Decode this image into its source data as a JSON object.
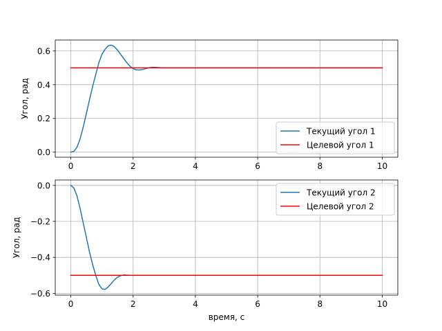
{
  "chart_data": [
    {
      "type": "line",
      "title": "",
      "xlabel": "",
      "ylabel": "Угол, рад",
      "xlim": [
        -0.5,
        10.5
      ],
      "ylim": [
        -0.03,
        0.665
      ],
      "xticks": [
        0,
        2,
        4,
        6,
        8,
        10
      ],
      "xtick_labels": [
        "0",
        "2",
        "4",
        "6",
        "8",
        "10"
      ],
      "yticks": [
        0.0,
        0.2,
        0.4,
        0.6
      ],
      "ytick_labels": [
        "0.0",
        "0.2",
        "0.4",
        "0.6"
      ],
      "grid": true,
      "legend": "lower-right",
      "series": [
        {
          "name": "Текущий угол 1",
          "color": "#1f77b4",
          "x": [
            0,
            0.1,
            0.2,
            0.3,
            0.4,
            0.5,
            0.6,
            0.7,
            0.8,
            0.9,
            1.0,
            1.1,
            1.2,
            1.3,
            1.4,
            1.5,
            1.6,
            1.7,
            1.8,
            1.9,
            2.0,
            2.1,
            2.2,
            2.3,
            2.4,
            2.5,
            2.6,
            2.7,
            2.8,
            2.9,
            3.0,
            3.5,
            4,
            5,
            6,
            7,
            8,
            9,
            10
          ],
          "y": [
            0.0,
            0.005,
            0.03,
            0.08,
            0.15,
            0.23,
            0.31,
            0.39,
            0.46,
            0.53,
            0.58,
            0.61,
            0.63,
            0.635,
            0.625,
            0.605,
            0.58,
            0.555,
            0.53,
            0.51,
            0.495,
            0.488,
            0.487,
            0.49,
            0.495,
            0.5,
            0.503,
            0.503,
            0.502,
            0.5,
            0.5,
            0.5,
            0.5,
            0.5,
            0.5,
            0.5,
            0.5,
            0.5,
            0.5
          ]
        },
        {
          "name": "Целевой угол 1",
          "color": "#ff0000",
          "x": [
            0,
            10
          ],
          "y": [
            0.5,
            0.5
          ]
        }
      ]
    },
    {
      "type": "line",
      "title": "",
      "xlabel": "время, с",
      "ylabel": "Угол, рад",
      "xlim": [
        -0.5,
        10.5
      ],
      "ylim": [
        -0.61,
        0.03
      ],
      "xticks": [
        0,
        2,
        4,
        6,
        8,
        10
      ],
      "xtick_labels": [
        "0",
        "2",
        "4",
        "6",
        "8",
        "10"
      ],
      "yticks": [
        0.0,
        -0.2,
        -0.4,
        -0.6
      ],
      "ytick_labels": [
        "0.0",
        "−0.2",
        "−0.4",
        "−0.6"
      ],
      "grid": true,
      "legend": "upper-right",
      "series": [
        {
          "name": "Текущий угол 2",
          "color": "#1f77b4",
          "x": [
            0,
            0.1,
            0.2,
            0.3,
            0.4,
            0.5,
            0.6,
            0.7,
            0.8,
            0.9,
            1.0,
            1.1,
            1.2,
            1.3,
            1.4,
            1.5,
            1.6,
            1.7,
            1.8,
            1.9,
            2.0,
            2.5,
            3,
            4,
            5,
            6,
            7,
            8,
            9,
            10
          ],
          "y": [
            0.0,
            -0.015,
            -0.06,
            -0.13,
            -0.21,
            -0.29,
            -0.37,
            -0.44,
            -0.5,
            -0.55,
            -0.575,
            -0.578,
            -0.565,
            -0.545,
            -0.525,
            -0.51,
            -0.502,
            -0.498,
            -0.499,
            -0.5,
            -0.5,
            -0.5,
            -0.5,
            -0.5,
            -0.5,
            -0.5,
            -0.5,
            -0.5,
            -0.5,
            -0.5
          ]
        },
        {
          "name": "Целевой угол 2",
          "color": "#ff0000",
          "x": [
            0,
            10
          ],
          "y": [
            -0.5,
            -0.5
          ]
        }
      ]
    }
  ]
}
